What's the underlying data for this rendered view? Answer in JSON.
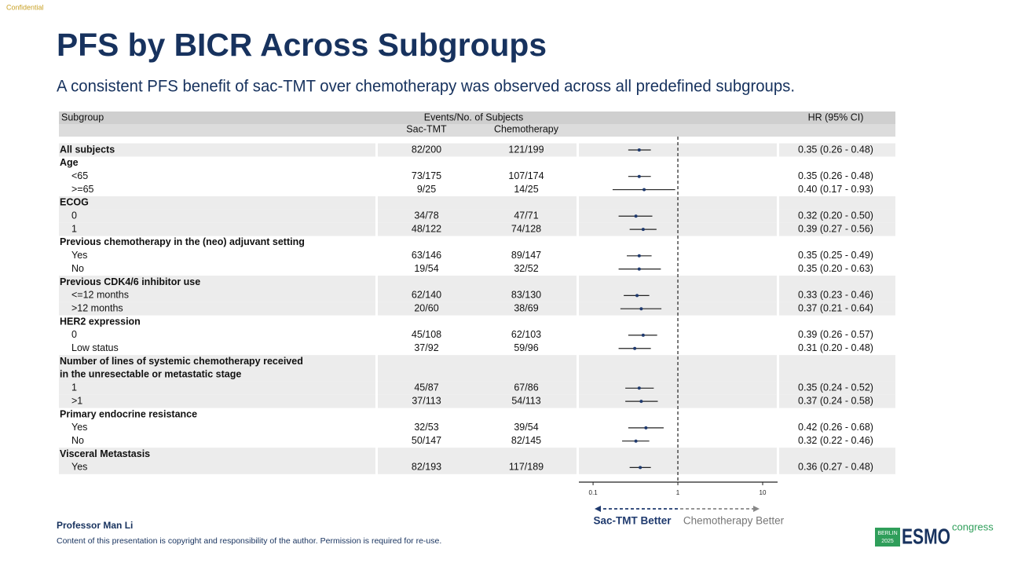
{
  "slide": {
    "confidential": "Confidential",
    "title": "PFS by BICR Across Subgroups",
    "subtitle": "A consistent PFS benefit of sac-TMT over chemotherapy was observed across all predefined subgroups.",
    "presenter": "Professor Man Li",
    "copyright": "Content of this presentation is copyright and responsibility of the author. Permission is required for re-use.",
    "logo_city": "BERLIN",
    "logo_year": "2025",
    "logo_name": "ESMO",
    "logo_word": "congress"
  },
  "chart_data": {
    "type": "forest",
    "x_scale": "log",
    "xlim": [
      0.068,
      15
    ],
    "xticks": [
      0.1,
      1,
      10
    ],
    "ref_line": 1,
    "headers": {
      "subgroup": "Subgroup",
      "events": "Events/No. of Subjects",
      "arm1": "Sac-TMT",
      "arm2": "Chemotherapy",
      "hr": "HR (95% CI)"
    },
    "favors_left": "Sac-TMT Better",
    "favors_right": "Chemotherapy Better",
    "color": "#1f3a6e",
    "rows": [
      {
        "label": "All subjects",
        "bold": true,
        "shade": true,
        "arm1": "82/200",
        "arm2": "121/199",
        "hr": 0.35,
        "lo": 0.26,
        "hi": 0.48,
        "hr_label": "0.35 (0.26 - 0.48)"
      },
      {
        "label": "Age",
        "bold": true,
        "shade": false
      },
      {
        "label": "<65",
        "indent": true,
        "shade": false,
        "arm1": "73/175",
        "arm2": "107/174",
        "hr": 0.35,
        "lo": 0.26,
        "hi": 0.48,
        "hr_label": "0.35 (0.26 - 0.48)"
      },
      {
        "label": ">=65",
        "indent": true,
        "shade": false,
        "arm1": "9/25",
        "arm2": "14/25",
        "hr": 0.4,
        "lo": 0.17,
        "hi": 0.93,
        "hr_label": "0.40 (0.17 - 0.93)"
      },
      {
        "label": "ECOG",
        "bold": true,
        "shade": true
      },
      {
        "label": "0",
        "indent": true,
        "shade": true,
        "arm1": "34/78",
        "arm2": "47/71",
        "hr": 0.32,
        "lo": 0.2,
        "hi": 0.5,
        "hr_label": "0.32 (0.20 - 0.50)"
      },
      {
        "label": "1",
        "indent": true,
        "shade": true,
        "arm1": "48/122",
        "arm2": "74/128",
        "hr": 0.39,
        "lo": 0.27,
        "hi": 0.56,
        "hr_label": "0.39 (0.27 - 0.56)"
      },
      {
        "label": "Previous chemotherapy in the (neo) adjuvant setting",
        "bold": true,
        "shade": false
      },
      {
        "label": "Yes",
        "indent": true,
        "shade": false,
        "arm1": "63/146",
        "arm2": "89/147",
        "hr": 0.35,
        "lo": 0.25,
        "hi": 0.49,
        "hr_label": "0.35 (0.25 - 0.49)"
      },
      {
        "label": "No",
        "indent": true,
        "shade": false,
        "arm1": "19/54",
        "arm2": "32/52",
        "hr": 0.35,
        "lo": 0.2,
        "hi": 0.63,
        "hr_label": "0.35 (0.20 - 0.63)"
      },
      {
        "label": "Previous CDK4/6 inhibitor use",
        "bold": true,
        "shade": true
      },
      {
        "label": "<=12 months",
        "indent": true,
        "shade": true,
        "arm1": "62/140",
        "arm2": "83/130",
        "hr": 0.33,
        "lo": 0.23,
        "hi": 0.46,
        "hr_label": "0.33 (0.23 - 0.46)"
      },
      {
        "label": ">12 months",
        "indent": true,
        "shade": true,
        "arm1": "20/60",
        "arm2": "38/69",
        "hr": 0.37,
        "lo": 0.21,
        "hi": 0.64,
        "hr_label": "0.37 (0.21 - 0.64)"
      },
      {
        "label": "HER2 expression",
        "bold": true,
        "shade": false
      },
      {
        "label": "0",
        "indent": true,
        "shade": false,
        "arm1": "45/108",
        "arm2": "62/103",
        "hr": 0.39,
        "lo": 0.26,
        "hi": 0.57,
        "hr_label": "0.39 (0.26 - 0.57)"
      },
      {
        "label": "Low status",
        "indent": true,
        "shade": false,
        "arm1": "37/92",
        "arm2": "59/96",
        "hr": 0.31,
        "lo": 0.2,
        "hi": 0.48,
        "hr_label": "0.31 (0.20 - 0.48)"
      },
      {
        "label": "Number of lines of systemic chemotherapy received",
        "bold": true,
        "shade": true
      },
      {
        "label": "in the unresectable or metastatic stage",
        "bold": true,
        "shade": true
      },
      {
        "label": "1",
        "indent": true,
        "shade": true,
        "arm1": "45/87",
        "arm2": "67/86",
        "hr": 0.35,
        "lo": 0.24,
        "hi": 0.52,
        "hr_label": "0.35 (0.24 - 0.52)"
      },
      {
        "label": ">1",
        "indent": true,
        "shade": true,
        "arm1": "37/113",
        "arm2": "54/113",
        "hr": 0.37,
        "lo": 0.24,
        "hi": 0.58,
        "hr_label": "0.37 (0.24 - 0.58)"
      },
      {
        "label": "Primary endocrine resistance",
        "bold": true,
        "shade": false
      },
      {
        "label": "Yes",
        "indent": true,
        "shade": false,
        "arm1": "32/53",
        "arm2": "39/54",
        "hr": 0.42,
        "lo": 0.26,
        "hi": 0.68,
        "hr_label": "0.42 (0.26 - 0.68)"
      },
      {
        "label": "No",
        "indent": true,
        "shade": false,
        "arm1": "50/147",
        "arm2": "82/145",
        "hr": 0.32,
        "lo": 0.22,
        "hi": 0.46,
        "hr_label": "0.32 (0.22 - 0.46)"
      },
      {
        "label": "Visceral Metastasis",
        "bold": true,
        "shade": true
      },
      {
        "label": "Yes",
        "indent": true,
        "shade": true,
        "arm1": "82/193",
        "arm2": "117/189",
        "hr": 0.36,
        "lo": 0.27,
        "hi": 0.48,
        "hr_label": "0.36 (0.27 - 0.48)"
      }
    ]
  }
}
